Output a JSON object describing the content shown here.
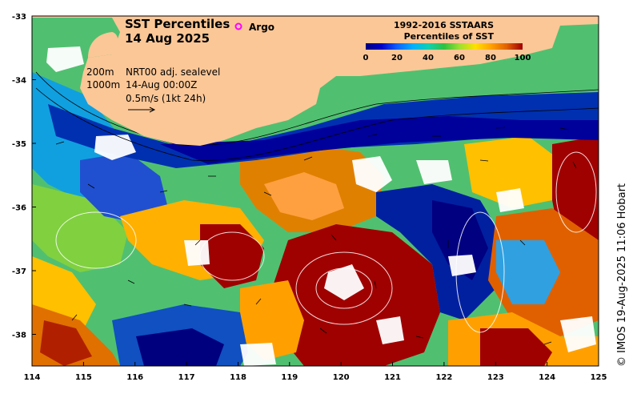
{
  "title": {
    "line1": "SST Percentiles",
    "line2": "14 Aug 2025"
  },
  "legend": {
    "argo_symbol": "o",
    "argo_label": "Argo",
    "argo_color": "#ff00ff"
  },
  "annotations": {
    "depth_200": "200m",
    "depth_1000": "1000m",
    "current_product": "NRT00 adj. sealevel",
    "current_time": "14-Aug 00:00Z",
    "scale_vector": "0.5m/s (1kt 24h)"
  },
  "colorbar": {
    "title_line1": "1992-2016 SSTAARS",
    "title_line2": "Percentiles of SST",
    "ticks": [
      "0",
      "20",
      "40",
      "60",
      "80",
      "100"
    ],
    "colors": [
      "#00007f",
      "#0000c8",
      "#1060ff",
      "#00b0ff",
      "#10d0b0",
      "#30c040",
      "#a0e030",
      "#ffe000",
      "#ffa000",
      "#e06000",
      "#9f0000"
    ]
  },
  "axes": {
    "x_ticks": [
      "114",
      "115",
      "116",
      "117",
      "118",
      "119",
      "120",
      "121",
      "122",
      "123",
      "124",
      "125"
    ],
    "y_ticks": [
      "-33",
      "-34",
      "-35",
      "-36",
      "-37",
      "-38"
    ]
  },
  "credit": "© IMOS 19-Aug-2025 11:06 Hobart",
  "colors": {
    "land": "#fbc797",
    "no_data": "#ffffff"
  }
}
